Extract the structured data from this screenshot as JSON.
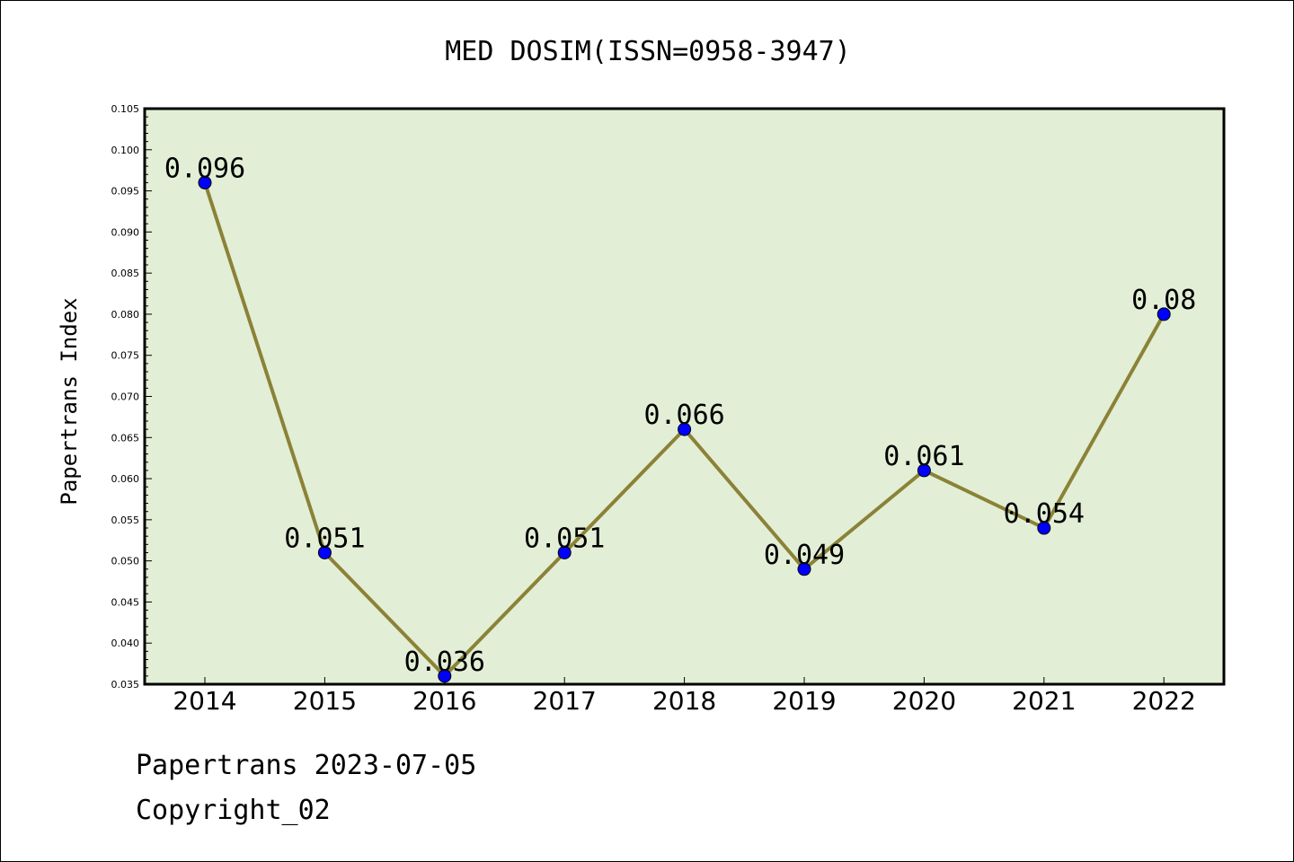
{
  "chart_data": {
    "type": "line",
    "title": "MED DOSIM(ISSN=0958-3947)",
    "xlabel": "",
    "ylabel": "Papertrans Index",
    "categories": [
      "2014",
      "2015",
      "2016",
      "2017",
      "2018",
      "2019",
      "2020",
      "2021",
      "2022"
    ],
    "values": [
      0.096,
      0.051,
      0.036,
      0.051,
      0.066,
      0.049,
      0.061,
      0.054,
      0.08
    ],
    "data_labels": [
      "0.096",
      "0.051",
      "0.036",
      "0.051",
      "0.066",
      "0.049",
      "0.061",
      "0.054",
      "0.08"
    ],
    "ylim": [
      0.035,
      0.105
    ],
    "yticks": [
      "0.035",
      "0.040",
      "0.045",
      "0.050",
      "0.055",
      "0.060",
      "0.065",
      "0.070",
      "0.075",
      "0.080",
      "0.085",
      "0.090",
      "0.095",
      "0.100",
      "0.105"
    ],
    "grid": false,
    "legend": "none",
    "colors": {
      "plot_background": "#e2efd6",
      "line": "#8b8237",
      "marker": "#0000ff"
    }
  },
  "footer": {
    "source": "Papertrans 2023-07-05",
    "copyright": "Copyright_02"
  }
}
